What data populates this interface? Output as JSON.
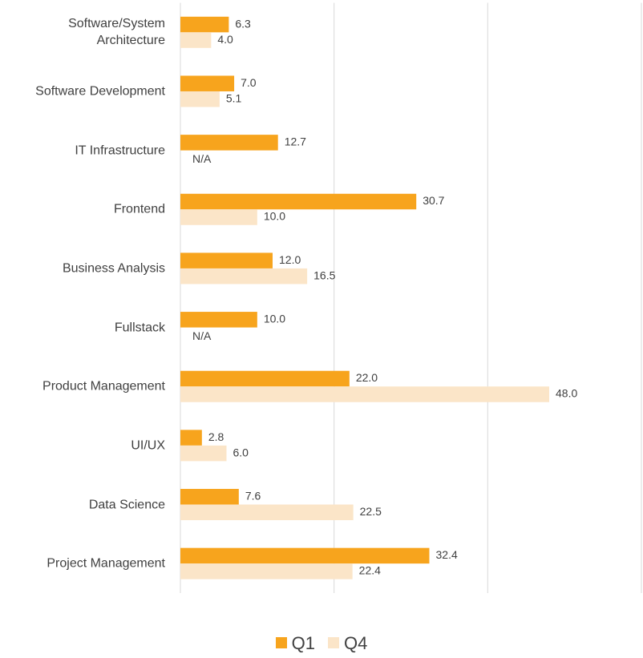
{
  "chart_data": {
    "type": "hbar",
    "categories": [
      "Software/System Architecture",
      "Software Development",
      "IT Infrastructure",
      "Frontend",
      "Business Analysis",
      "Fullstack",
      "Product Management",
      "UI/UX",
      "Data Science",
      "Project Management"
    ],
    "series": [
      {
        "name": "Q1",
        "color": "#f7a41d",
        "values": [
          6.3,
          7.0,
          12.7,
          30.7,
          12.0,
          10.0,
          22.0,
          2.8,
          7.6,
          32.4
        ],
        "value_labels": [
          "6.3",
          "7.0",
          "12.7",
          "30.7",
          "12.0",
          "10.0",
          "22.0",
          "2.8",
          "7.6",
          "32.4"
        ]
      },
      {
        "name": "Q4",
        "color": "#fbe5c8",
        "values": [
          4.0,
          5.1,
          null,
          10.0,
          16.5,
          null,
          48.0,
          6.0,
          22.5,
          22.4
        ],
        "value_labels": [
          "4.0",
          "5.1",
          "N/A",
          "10.0",
          "16.5",
          "N/A",
          "48.0",
          "6.0",
          "22.5",
          "22.4"
        ]
      }
    ],
    "xlim": [
      0,
      60
    ],
    "xticks": [
      0,
      20,
      40,
      60
    ],
    "grid": true,
    "legend": "bottom"
  }
}
